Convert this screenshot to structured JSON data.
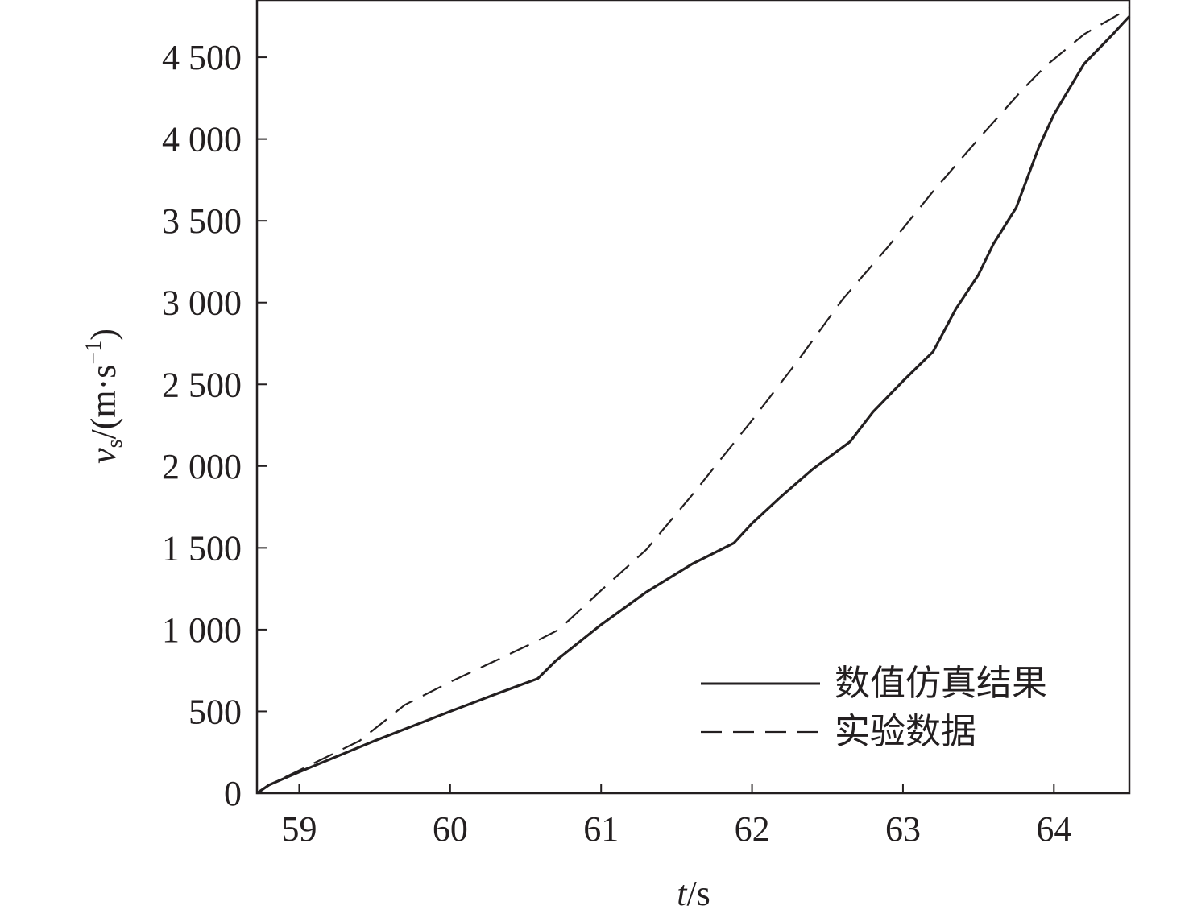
{
  "chart_data": {
    "type": "line",
    "title": "",
    "xlabel": "t/s",
    "ylabel": "vs/(m·s−1)",
    "xlim": [
      58.72,
      64.5
    ],
    "ylim": [
      0,
      4850
    ],
    "xticks": [
      59,
      60,
      61,
      62,
      63,
      64
    ],
    "xtick_labels": [
      "59",
      "60",
      "61",
      "62",
      "63",
      "64"
    ],
    "yticks": [
      0,
      500,
      1000,
      1500,
      2000,
      2500,
      3000,
      3500,
      4000,
      4500
    ],
    "ytick_labels": [
      "0",
      "500",
      "1 000",
      "1 500",
      "2 000",
      "2 500",
      "3 000",
      "3 500",
      "4 000",
      "4 500"
    ],
    "grid": false,
    "legend_position": "bottom-right",
    "series": [
      {
        "name": "数值仿真结果",
        "style": "solid",
        "color": "#231f20",
        "x": [
          58.72,
          58.8,
          58.9,
          59.0,
          59.5,
          60.0,
          60.3,
          60.58,
          60.7,
          61.0,
          61.3,
          61.6,
          61.88,
          62.0,
          62.2,
          62.4,
          62.65,
          62.8,
          63.0,
          63.2,
          63.35,
          63.5,
          63.6,
          63.75,
          63.9,
          64.0,
          64.2,
          64.4,
          64.5
        ],
        "y": [
          0,
          50,
          90,
          130,
          320,
          500,
          605,
          700,
          810,
          1030,
          1230,
          1400,
          1530,
          1650,
          1820,
          1980,
          2150,
          2330,
          2520,
          2700,
          2960,
          3170,
          3360,
          3580,
          3950,
          4150,
          4460,
          4650,
          4750
        ]
      },
      {
        "name": "实验数据",
        "style": "dashed",
        "color": "#231f20",
        "x": [
          58.72,
          58.8,
          59.0,
          59.4,
          59.7,
          60.0,
          60.3,
          60.55,
          60.72,
          61.0,
          61.3,
          61.6,
          62.0,
          62.3,
          62.6,
          62.9,
          63.2,
          63.5,
          63.8,
          63.95,
          64.2,
          64.5
        ],
        "y": [
          0,
          50,
          140,
          320,
          540,
          680,
          810,
          920,
          1000,
          1240,
          1490,
          1820,
          2280,
          2640,
          3020,
          3340,
          3680,
          4000,
          4310,
          4450,
          4640,
          4800
        ]
      }
    ]
  }
}
